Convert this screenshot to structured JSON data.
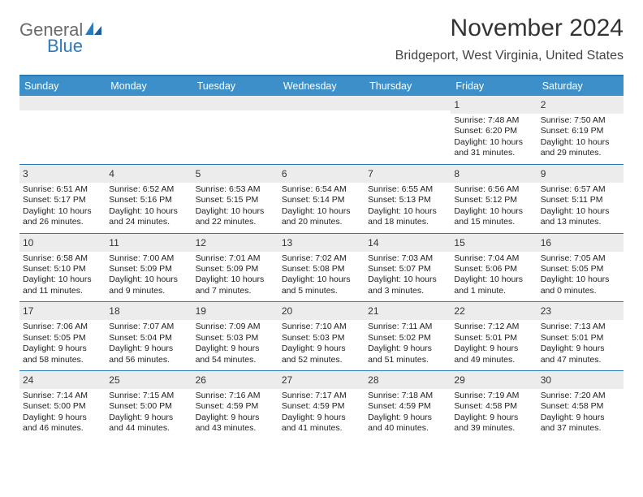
{
  "logo": {
    "text1": "General",
    "text2": "Blue"
  },
  "title": "November 2024",
  "location": "Bridgeport, West Virginia, United States",
  "colors": {
    "header_bar": "#3d8fc9",
    "rule": "#2a7ab8",
    "daynum_bg": "#ececec",
    "logo_gray": "#6b6b6b",
    "logo_blue": "#2b7bbf"
  },
  "weekdays": [
    "Sunday",
    "Monday",
    "Tuesday",
    "Wednesday",
    "Thursday",
    "Friday",
    "Saturday"
  ],
  "weeks": [
    [
      {
        "n": "",
        "l1": "",
        "l2": "",
        "l3": "",
        "l4": ""
      },
      {
        "n": "",
        "l1": "",
        "l2": "",
        "l3": "",
        "l4": ""
      },
      {
        "n": "",
        "l1": "",
        "l2": "",
        "l3": "",
        "l4": ""
      },
      {
        "n": "",
        "l1": "",
        "l2": "",
        "l3": "",
        "l4": ""
      },
      {
        "n": "",
        "l1": "",
        "l2": "",
        "l3": "",
        "l4": ""
      },
      {
        "n": "1",
        "l1": "Sunrise: 7:48 AM",
        "l2": "Sunset: 6:20 PM",
        "l3": "Daylight: 10 hours",
        "l4": "and 31 minutes."
      },
      {
        "n": "2",
        "l1": "Sunrise: 7:50 AM",
        "l2": "Sunset: 6:19 PM",
        "l3": "Daylight: 10 hours",
        "l4": "and 29 minutes."
      }
    ],
    [
      {
        "n": "3",
        "l1": "Sunrise: 6:51 AM",
        "l2": "Sunset: 5:17 PM",
        "l3": "Daylight: 10 hours",
        "l4": "and 26 minutes."
      },
      {
        "n": "4",
        "l1": "Sunrise: 6:52 AM",
        "l2": "Sunset: 5:16 PM",
        "l3": "Daylight: 10 hours",
        "l4": "and 24 minutes."
      },
      {
        "n": "5",
        "l1": "Sunrise: 6:53 AM",
        "l2": "Sunset: 5:15 PM",
        "l3": "Daylight: 10 hours",
        "l4": "and 22 minutes."
      },
      {
        "n": "6",
        "l1": "Sunrise: 6:54 AM",
        "l2": "Sunset: 5:14 PM",
        "l3": "Daylight: 10 hours",
        "l4": "and 20 minutes."
      },
      {
        "n": "7",
        "l1": "Sunrise: 6:55 AM",
        "l2": "Sunset: 5:13 PM",
        "l3": "Daylight: 10 hours",
        "l4": "and 18 minutes."
      },
      {
        "n": "8",
        "l1": "Sunrise: 6:56 AM",
        "l2": "Sunset: 5:12 PM",
        "l3": "Daylight: 10 hours",
        "l4": "and 15 minutes."
      },
      {
        "n": "9",
        "l1": "Sunrise: 6:57 AM",
        "l2": "Sunset: 5:11 PM",
        "l3": "Daylight: 10 hours",
        "l4": "and 13 minutes."
      }
    ],
    [
      {
        "n": "10",
        "l1": "Sunrise: 6:58 AM",
        "l2": "Sunset: 5:10 PM",
        "l3": "Daylight: 10 hours",
        "l4": "and 11 minutes."
      },
      {
        "n": "11",
        "l1": "Sunrise: 7:00 AM",
        "l2": "Sunset: 5:09 PM",
        "l3": "Daylight: 10 hours",
        "l4": "and 9 minutes."
      },
      {
        "n": "12",
        "l1": "Sunrise: 7:01 AM",
        "l2": "Sunset: 5:09 PM",
        "l3": "Daylight: 10 hours",
        "l4": "and 7 minutes."
      },
      {
        "n": "13",
        "l1": "Sunrise: 7:02 AM",
        "l2": "Sunset: 5:08 PM",
        "l3": "Daylight: 10 hours",
        "l4": "and 5 minutes."
      },
      {
        "n": "14",
        "l1": "Sunrise: 7:03 AM",
        "l2": "Sunset: 5:07 PM",
        "l3": "Daylight: 10 hours",
        "l4": "and 3 minutes."
      },
      {
        "n": "15",
        "l1": "Sunrise: 7:04 AM",
        "l2": "Sunset: 5:06 PM",
        "l3": "Daylight: 10 hours",
        "l4": "and 1 minute."
      },
      {
        "n": "16",
        "l1": "Sunrise: 7:05 AM",
        "l2": "Sunset: 5:05 PM",
        "l3": "Daylight: 10 hours",
        "l4": "and 0 minutes."
      }
    ],
    [
      {
        "n": "17",
        "l1": "Sunrise: 7:06 AM",
        "l2": "Sunset: 5:05 PM",
        "l3": "Daylight: 9 hours",
        "l4": "and 58 minutes."
      },
      {
        "n": "18",
        "l1": "Sunrise: 7:07 AM",
        "l2": "Sunset: 5:04 PM",
        "l3": "Daylight: 9 hours",
        "l4": "and 56 minutes."
      },
      {
        "n": "19",
        "l1": "Sunrise: 7:09 AM",
        "l2": "Sunset: 5:03 PM",
        "l3": "Daylight: 9 hours",
        "l4": "and 54 minutes."
      },
      {
        "n": "20",
        "l1": "Sunrise: 7:10 AM",
        "l2": "Sunset: 5:03 PM",
        "l3": "Daylight: 9 hours",
        "l4": "and 52 minutes."
      },
      {
        "n": "21",
        "l1": "Sunrise: 7:11 AM",
        "l2": "Sunset: 5:02 PM",
        "l3": "Daylight: 9 hours",
        "l4": "and 51 minutes."
      },
      {
        "n": "22",
        "l1": "Sunrise: 7:12 AM",
        "l2": "Sunset: 5:01 PM",
        "l3": "Daylight: 9 hours",
        "l4": "and 49 minutes."
      },
      {
        "n": "23",
        "l1": "Sunrise: 7:13 AM",
        "l2": "Sunset: 5:01 PM",
        "l3": "Daylight: 9 hours",
        "l4": "and 47 minutes."
      }
    ],
    [
      {
        "n": "24",
        "l1": "Sunrise: 7:14 AM",
        "l2": "Sunset: 5:00 PM",
        "l3": "Daylight: 9 hours",
        "l4": "and 46 minutes."
      },
      {
        "n": "25",
        "l1": "Sunrise: 7:15 AM",
        "l2": "Sunset: 5:00 PM",
        "l3": "Daylight: 9 hours",
        "l4": "and 44 minutes."
      },
      {
        "n": "26",
        "l1": "Sunrise: 7:16 AM",
        "l2": "Sunset: 4:59 PM",
        "l3": "Daylight: 9 hours",
        "l4": "and 43 minutes."
      },
      {
        "n": "27",
        "l1": "Sunrise: 7:17 AM",
        "l2": "Sunset: 4:59 PM",
        "l3": "Daylight: 9 hours",
        "l4": "and 41 minutes."
      },
      {
        "n": "28",
        "l1": "Sunrise: 7:18 AM",
        "l2": "Sunset: 4:59 PM",
        "l3": "Daylight: 9 hours",
        "l4": "and 40 minutes."
      },
      {
        "n": "29",
        "l1": "Sunrise: 7:19 AM",
        "l2": "Sunset: 4:58 PM",
        "l3": "Daylight: 9 hours",
        "l4": "and 39 minutes."
      },
      {
        "n": "30",
        "l1": "Sunrise: 7:20 AM",
        "l2": "Sunset: 4:58 PM",
        "l3": "Daylight: 9 hours",
        "l4": "and 37 minutes."
      }
    ]
  ]
}
